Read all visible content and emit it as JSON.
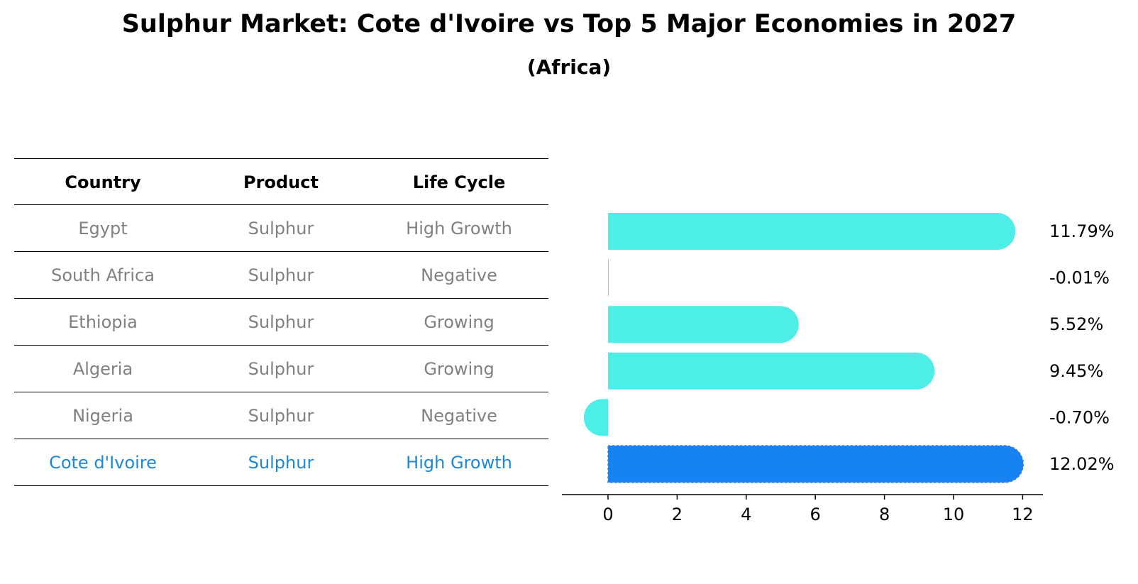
{
  "title": "Sulphur Market: Cote d'Ivoire vs Top 5 Major Economies in 2027",
  "subtitle": "(Africa)",
  "table": {
    "headers": [
      "Country",
      "Product",
      "Life Cycle"
    ],
    "rows": [
      [
        "Egypt",
        "Sulphur",
        "High Growth"
      ],
      [
        "South Africa",
        "Sulphur",
        "Negative"
      ],
      [
        "Ethiopia",
        "Sulphur",
        "Growing"
      ],
      [
        "Algeria",
        "Sulphur",
        "Growing"
      ],
      [
        "Nigeria",
        "Sulphur",
        "Negative"
      ],
      [
        "Cote d'Ivoire",
        "Sulphur",
        "High Growth"
      ]
    ],
    "highlight_row": 5
  },
  "chart_data": {
    "type": "bar",
    "orientation": "horizontal",
    "categories": [
      "Egypt",
      "South Africa",
      "Ethiopia",
      "Algeria",
      "Nigeria",
      "Cote d'Ivoire"
    ],
    "values": [
      11.79,
      -0.01,
      5.52,
      9.45,
      -0.7,
      12.02
    ],
    "data_labels": [
      "11.79%",
      "-0.01%",
      "5.52%",
      "9.45%",
      "-0.70%",
      "12.02%"
    ],
    "xticks": [
      0,
      2,
      4,
      6,
      8,
      10,
      12
    ],
    "xlim": [
      -1.35,
      12.65
    ],
    "grid": false,
    "colors": {
      "default": "#4deee8",
      "highlight": "#1783f2",
      "axis": "#000000",
      "label": "#000000"
    },
    "highlight_index": 5
  }
}
